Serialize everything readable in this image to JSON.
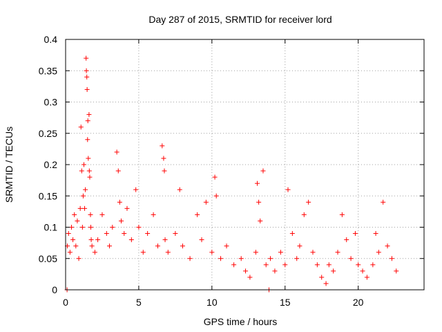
{
  "chart_data": {
    "type": "scatter",
    "title": "Day 287 of 2015, SRMTID for receiver lord",
    "xlabel": "GPS time / hours",
    "ylabel": "SRMTID / TECUs",
    "xlim": [
      0,
      24.5
    ],
    "ylim": [
      0,
      0.4
    ],
    "xticks": [
      0,
      5,
      10,
      15,
      20
    ],
    "yticks": [
      0,
      0.05,
      0.1,
      0.15,
      0.2,
      0.25,
      0.3,
      0.35,
      0.4
    ],
    "xtick_labels": [
      "0",
      "5",
      "10",
      "15",
      "20"
    ],
    "ytick_labels": [
      "0",
      "0.05",
      "0.1",
      "0.15",
      "0.2",
      "0.25",
      "0.3",
      "0.35",
      "0.4"
    ],
    "grid": true,
    "marker": "+",
    "color": "#ff0000",
    "series": [
      {
        "name": "SRMTID",
        "x": [
          0.1,
          0.12,
          0.2,
          0.3,
          0.4,
          0.5,
          0.6,
          0.7,
          0.8,
          0.9,
          1.0,
          1.05,
          1.1,
          1.15,
          1.2,
          1.25,
          1.3,
          1.35,
          1.4,
          1.42,
          1.45,
          1.47,
          1.5,
          1.52,
          1.55,
          1.6,
          1.62,
          1.65,
          1.7,
          1.72,
          1.75,
          1.8,
          2.0,
          2.2,
          2.5,
          2.8,
          3.0,
          3.2,
          3.5,
          3.6,
          3.7,
          3.8,
          4.0,
          4.2,
          4.5,
          4.8,
          5.0,
          5.3,
          5.6,
          6.0,
          6.3,
          6.6,
          6.7,
          6.75,
          6.8,
          7.0,
          7.5,
          7.8,
          8.0,
          8.5,
          9.0,
          9.3,
          9.6,
          10.0,
          10.2,
          10.3,
          10.6,
          11.0,
          11.5,
          12.0,
          12.3,
          12.6,
          13.0,
          13.1,
          13.2,
          13.3,
          13.5,
          13.7,
          13.9,
          14.0,
          14.3,
          14.7,
          15.0,
          15.2,
          15.5,
          15.8,
          16.0,
          16.3,
          16.6,
          16.9,
          17.2,
          17.5,
          17.8,
          18.0,
          18.3,
          18.6,
          18.9,
          19.2,
          19.5,
          19.8,
          20.0,
          20.3,
          20.6,
          21.0,
          21.2,
          21.4,
          21.7,
          22.0,
          22.3,
          22.6
        ],
        "y": [
          0.0,
          0.07,
          0.09,
          0.06,
          0.1,
          0.08,
          0.12,
          0.07,
          0.11,
          0.05,
          0.13,
          0.26,
          0.19,
          0.1,
          0.15,
          0.2,
          0.13,
          0.16,
          0.37,
          0.35,
          0.34,
          0.32,
          0.24,
          0.27,
          0.21,
          0.28,
          0.19,
          0.18,
          0.12,
          0.1,
          0.08,
          0.07,
          0.06,
          0.08,
          0.12,
          0.09,
          0.07,
          0.1,
          0.22,
          0.19,
          0.14,
          0.11,
          0.09,
          0.13,
          0.08,
          0.16,
          0.1,
          0.06,
          0.09,
          0.12,
          0.07,
          0.23,
          0.21,
          0.19,
          0.08,
          0.06,
          0.09,
          0.16,
          0.07,
          0.05,
          0.12,
          0.08,
          0.14,
          0.06,
          0.18,
          0.15,
          0.05,
          0.07,
          0.04,
          0.05,
          0.03,
          0.02,
          0.06,
          0.17,
          0.14,
          0.11,
          0.19,
          0.04,
          0.0,
          0.05,
          0.03,
          0.06,
          0.04,
          0.16,
          0.09,
          0.05,
          0.07,
          0.12,
          0.14,
          0.06,
          0.04,
          0.02,
          0.01,
          0.04,
          0.03,
          0.06,
          0.12,
          0.08,
          0.05,
          0.09,
          0.04,
          0.03,
          0.02,
          0.04,
          0.09,
          0.06,
          0.14,
          0.07,
          0.05,
          0.03
        ]
      }
    ]
  }
}
